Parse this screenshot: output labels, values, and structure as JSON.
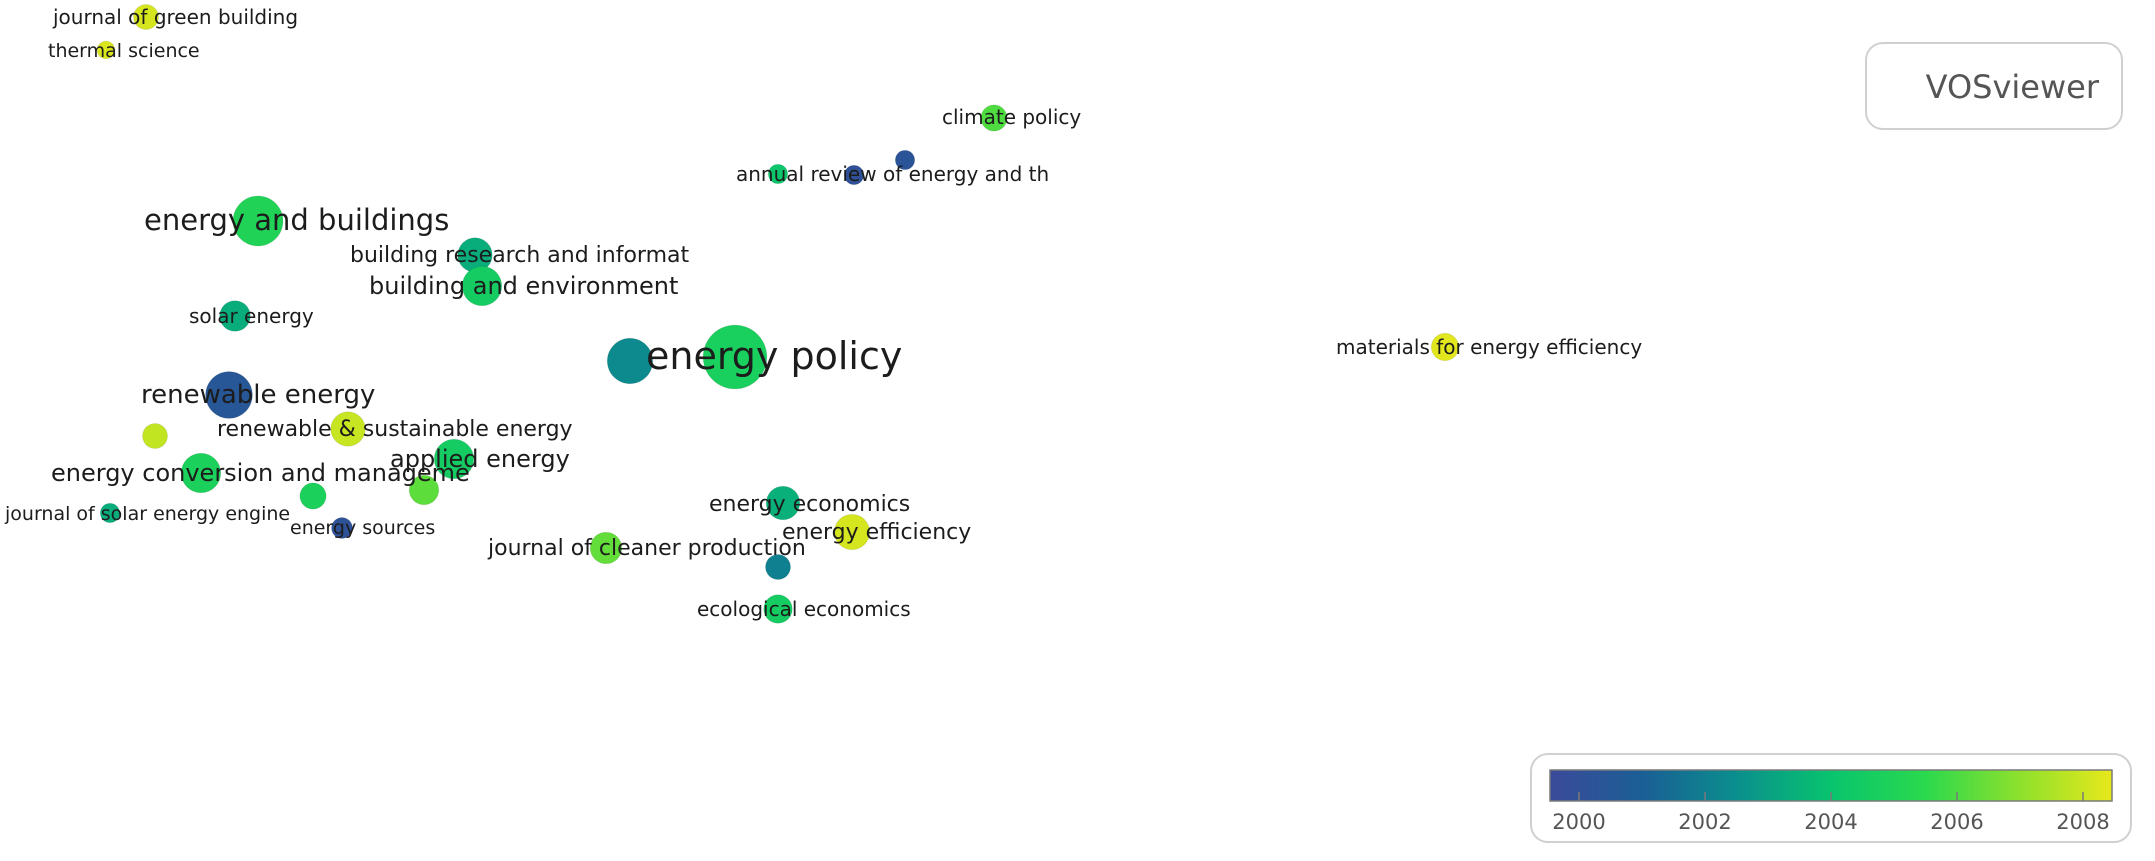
{
  "brand": "VOSviewer",
  "legend": {
    "labels": [
      "2000",
      "2002",
      "2004",
      "2006",
      "2008"
    ],
    "color_stops": [
      "#3b4a9a",
      "#1a5f95",
      "#0a8f8d",
      "#08c46e",
      "#2ad94d",
      "#8ce02d",
      "#e7e81b"
    ]
  },
  "nodes": [
    {
      "label": "journal of green building",
      "year": 2008.6,
      "weight": 1.0
    },
    {
      "label": "thermal science",
      "year": 2008.7,
      "weight": 0.5
    },
    {
      "label": "climate policy",
      "year": 2006.5,
      "weight": 1.1
    },
    {
      "label": "",
      "year": 2000.7,
      "weight": 0.6
    },
    {
      "label": "annual review of energy and th",
      "year": 2000.5,
      "weight": 0.6
    },
    {
      "label": "",
      "year": 2004.6,
      "weight": 0.6
    },
    {
      "label": "energy and buildings",
      "year": 2005.5,
      "weight": 4.0
    },
    {
      "label": "building research and informat",
      "year": 2003.8,
      "weight": 1.9
    },
    {
      "label": "building and environment",
      "year": 2005.0,
      "weight": 2.5
    },
    {
      "label": "solar energy",
      "year": 2003.8,
      "weight": 1.5
    },
    {
      "label": "energy policy",
      "year": 2005.2,
      "weight": 6.5
    },
    {
      "label": "",
      "year": 2002.8,
      "weight": 3.3
    },
    {
      "label": "materials for energy efficiency",
      "year": 2008.8,
      "weight": 1.2
    },
    {
      "label": "renewable energy",
      "year": 2000.9,
      "weight": 3.5
    },
    {
      "label": "renewable & sustainable energy",
      "year": 2008.4,
      "weight": 1.9
    },
    {
      "label": "",
      "year": 2008.3,
      "weight": 1.0
    },
    {
      "label": "applied energy",
      "year": 2005.0,
      "weight": 2.5
    },
    {
      "label": "energy conversion and manageme",
      "year": 2005.3,
      "weight": 2.5
    },
    {
      "label": "",
      "year": 2005.3,
      "weight": 1.1
    },
    {
      "label": "",
      "year": 2006.7,
      "weight": 1.4
    },
    {
      "label": "journal of solar energy engine",
      "year": 2003.8,
      "weight": 0.6
    },
    {
      "label": "energy sources",
      "year": 2000.6,
      "weight": 0.7
    },
    {
      "label": "energy economics",
      "year": 2003.9,
      "weight": 1.8
    },
    {
      "label": "energy efficiency",
      "year": 2008.6,
      "weight": 2.0
    },
    {
      "label": "journal of cleaner production",
      "year": 2006.8,
      "weight": 1.6
    },
    {
      "label": "",
      "year": 2002.5,
      "weight": 1.0
    },
    {
      "label": "ecological economics",
      "year": 2005.0,
      "weight": 1.3
    }
  ]
}
